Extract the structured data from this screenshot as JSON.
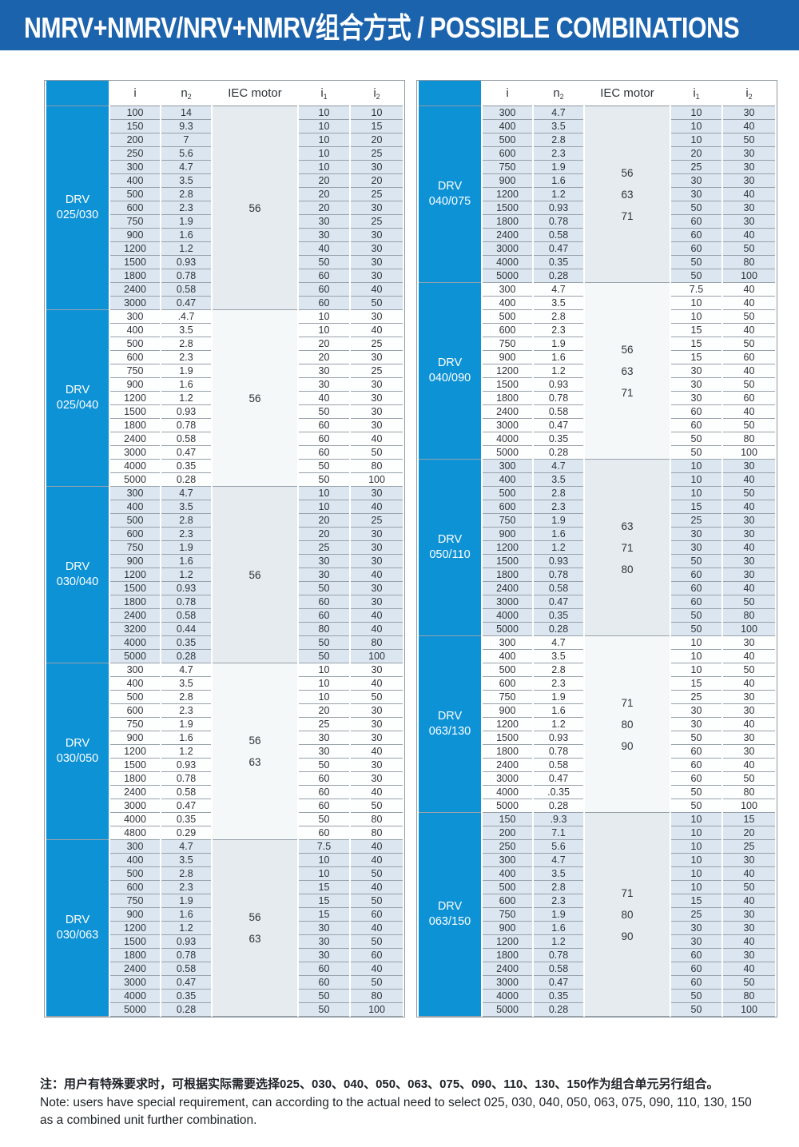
{
  "banner": {
    "title": "NMRV+NMRV/NRV+NMRV组合方式 / POSSIBLE COMBINATIONS",
    "bg_color": "#1c63ae"
  },
  "colors": {
    "group_label_blue": "#0d92d6",
    "shaded_cell": "#dbe6f0",
    "grid_line": "#98a2aa"
  },
  "table_headers": [
    {
      "main": "i",
      "sub": ""
    },
    {
      "main": "n",
      "sub": "2"
    },
    {
      "main": "IEC motor",
      "sub": ""
    },
    {
      "main": "i",
      "sub": "1"
    },
    {
      "main": "i",
      "sub": "2"
    }
  ],
  "tables": [
    {
      "side": "left",
      "groups": [
        {
          "label_line1": "DRV",
          "label_line2": "025/030",
          "shading": "shaded",
          "iec": [
            "56"
          ],
          "rows": [
            [
              "100",
              "14",
              "10",
              "10"
            ],
            [
              "150",
              "9.3",
              "10",
              "15"
            ],
            [
              "200",
              "7",
              "10",
              "20"
            ],
            [
              "250",
              "5.6",
              "10",
              "25"
            ],
            [
              "300",
              "4.7",
              "10",
              "30"
            ],
            [
              "400",
              "3.5",
              "20",
              "20"
            ],
            [
              "500",
              "2.8",
              "20",
              "25"
            ],
            [
              "600",
              "2.3",
              "20",
              "30"
            ],
            [
              "750",
              "1.9",
              "30",
              "25"
            ],
            [
              "900",
              "1.6",
              "30",
              "30"
            ],
            [
              "1200",
              "1.2",
              "40",
              "30"
            ],
            [
              "1500",
              "0.93",
              "50",
              "30"
            ],
            [
              "1800",
              "0.78",
              "60",
              "30"
            ],
            [
              "2400",
              "0.58",
              "60",
              "40"
            ],
            [
              "3000",
              "0.47",
              "60",
              "50"
            ]
          ]
        },
        {
          "label_line1": "DRV",
          "label_line2": "025/040",
          "shading": "white",
          "iec": [
            "56"
          ],
          "rows": [
            [
              "300",
              ".4.7",
              "10",
              "30"
            ],
            [
              "400",
              "3.5",
              "10",
              "40"
            ],
            [
              "500",
              "2.8",
              "20",
              "25"
            ],
            [
              "600",
              "2.3",
              "20",
              "30"
            ],
            [
              "750",
              "1.9",
              "30",
              "25"
            ],
            [
              "900",
              "1.6",
              "30",
              "30"
            ],
            [
              "1200",
              "1.2",
              "40",
              "30"
            ],
            [
              "1500",
              "0.93",
              "50",
              "30"
            ],
            [
              "1800",
              "0.78",
              "60",
              "30"
            ],
            [
              "2400",
              "0.58",
              "60",
              "40"
            ],
            [
              "3000",
              "0.47",
              "60",
              "50"
            ],
            [
              "4000",
              "0.35",
              "50",
              "80"
            ],
            [
              "5000",
              "0.28",
              "50",
              "100"
            ]
          ]
        },
        {
          "label_line1": "DRV",
          "label_line2": "030/040",
          "shading": "shaded",
          "iec": [
            "56"
          ],
          "rows": [
            [
              "300",
              "4.7",
              "10",
              "30"
            ],
            [
              "400",
              "3.5",
              "10",
              "40"
            ],
            [
              "500",
              "2.8",
              "20",
              "25"
            ],
            [
              "600",
              "2.3",
              "20",
              "30"
            ],
            [
              "750",
              "1.9",
              "25",
              "30"
            ],
            [
              "900",
              "1.6",
              "30",
              "30"
            ],
            [
              "1200",
              "1.2",
              "30",
              "40"
            ],
            [
              "1500",
              "0.93",
              "50",
              "30"
            ],
            [
              "1800",
              "0.78",
              "60",
              "30"
            ],
            [
              "2400",
              "0.58",
              "60",
              "40"
            ],
            [
              "3200",
              "0.44",
              "80",
              "40"
            ],
            [
              "4000",
              "0.35",
              "50",
              "80"
            ],
            [
              "5000",
              "0.28",
              "50",
              "100"
            ]
          ]
        },
        {
          "label_line1": "DRV",
          "label_line2": "030/050",
          "shading": "white",
          "iec": [
            "56",
            "63"
          ],
          "rows": [
            [
              "300",
              "4.7",
              "10",
              "30"
            ],
            [
              "400",
              "3.5",
              "10",
              "40"
            ],
            [
              "500",
              "2.8",
              "10",
              "50"
            ],
            [
              "600",
              "2.3",
              "20",
              "30"
            ],
            [
              "750",
              "1.9",
              "25",
              "30"
            ],
            [
              "900",
              "1.6",
              "30",
              "30"
            ],
            [
              "1200",
              "1.2",
              "30",
              "40"
            ],
            [
              "1500",
              "0.93",
              "50",
              "30"
            ],
            [
              "1800",
              "0.78",
              "60",
              "30"
            ],
            [
              "2400",
              "0.58",
              "60",
              "40"
            ],
            [
              "3000",
              "0.47",
              "60",
              "50"
            ],
            [
              "4000",
              "0.35",
              "50",
              "80"
            ],
            [
              "4800",
              "0.29",
              "60",
              "80"
            ]
          ]
        },
        {
          "label_line1": "DRV",
          "label_line2": "030/063",
          "shading": "shaded",
          "iec": [
            "56",
            "63"
          ],
          "rows": [
            [
              "300",
              "4.7",
              "7.5",
              "40"
            ],
            [
              "400",
              "3.5",
              "10",
              "40"
            ],
            [
              "500",
              "2.8",
              "10",
              "50"
            ],
            [
              "600",
              "2.3",
              "15",
              "40"
            ],
            [
              "750",
              "1.9",
              "15",
              "50"
            ],
            [
              "900",
              "1.6",
              "15",
              "60"
            ],
            [
              "1200",
              "1.2",
              "30",
              "40"
            ],
            [
              "1500",
              "0.93",
              "30",
              "50"
            ],
            [
              "1800",
              "0.78",
              "30",
              "60"
            ],
            [
              "2400",
              "0.58",
              "60",
              "40"
            ],
            [
              "3000",
              "0.47",
              "60",
              "50"
            ],
            [
              "4000",
              "0.35",
              "50",
              "80"
            ],
            [
              "5000",
              "0.28",
              "50",
              "100"
            ]
          ]
        }
      ]
    },
    {
      "side": "right",
      "groups": [
        {
          "label_line1": "DRV",
          "label_line2": "040/075",
          "shading": "shaded",
          "iec": [
            "56",
            "63",
            "71"
          ],
          "rows": [
            [
              "300",
              "4.7",
              "10",
              "30"
            ],
            [
              "400",
              "3.5",
              "10",
              "40"
            ],
            [
              "500",
              "2.8",
              "10",
              "50"
            ],
            [
              "600",
              "2.3",
              "20",
              "30"
            ],
            [
              "750",
              "1.9",
              "25",
              "30"
            ],
            [
              "900",
              "1.6",
              "30",
              "30"
            ],
            [
              "1200",
              "1.2",
              "30",
              "40"
            ],
            [
              "1500",
              "0.93",
              "50",
              "30"
            ],
            [
              "1800",
              "0.78",
              "60",
              "30"
            ],
            [
              "2400",
              "0.58",
              "60",
              "40"
            ],
            [
              "3000",
              "0.47",
              "60",
              "50"
            ],
            [
              "4000",
              "0.35",
              "50",
              "80"
            ],
            [
              "5000",
              "0.28",
              "50",
              "100"
            ]
          ]
        },
        {
          "label_line1": "DRV",
          "label_line2": "040/090",
          "shading": "white",
          "iec": [
            "56",
            "63",
            "71"
          ],
          "rows": [
            [
              "300",
              "4.7",
              "7.5",
              "40"
            ],
            [
              "400",
              "3.5",
              "10",
              "40"
            ],
            [
              "500",
              "2.8",
              "10",
              "50"
            ],
            [
              "600",
              "2.3",
              "15",
              "40"
            ],
            [
              "750",
              "1.9",
              "15",
              "50"
            ],
            [
              "900",
              "1.6",
              "15",
              "60"
            ],
            [
              "1200",
              "1.2",
              "30",
              "40"
            ],
            [
              "1500",
              "0.93",
              "30",
              "50"
            ],
            [
              "1800",
              "0.78",
              "30",
              "60"
            ],
            [
              "2400",
              "0.58",
              "60",
              "40"
            ],
            [
              "3000",
              "0.47",
              "60",
              "50"
            ],
            [
              "4000",
              "0.35",
              "50",
              "80"
            ],
            [
              "5000",
              "0.28",
              "50",
              "100"
            ]
          ]
        },
        {
          "label_line1": "DRV",
          "label_line2": "050/110",
          "shading": "shaded",
          "iec": [
            "63",
            "71",
            "80"
          ],
          "rows": [
            [
              "300",
              "4.7",
              "10",
              "30"
            ],
            [
              "400",
              "3.5",
              "10",
              "40"
            ],
            [
              "500",
              "2.8",
              "10",
              "50"
            ],
            [
              "600",
              "2.3",
              "15",
              "40"
            ],
            [
              "750",
              "1.9",
              "25",
              "30"
            ],
            [
              "900",
              "1.6",
              "30",
              "30"
            ],
            [
              "1200",
              "1.2",
              "30",
              "40"
            ],
            [
              "1500",
              "0.93",
              "50",
              "30"
            ],
            [
              "1800",
              "0.78",
              "60",
              "30"
            ],
            [
              "2400",
              "0.58",
              "60",
              "40"
            ],
            [
              "3000",
              "0.47",
              "60",
              "50"
            ],
            [
              "4000",
              "0.35",
              "50",
              "80"
            ],
            [
              "5000",
              "0.28",
              "50",
              "100"
            ]
          ]
        },
        {
          "label_line1": "DRV",
          "label_line2": "063/130",
          "shading": "white",
          "iec": [
            "71",
            "80",
            "90"
          ],
          "rows": [
            [
              "300",
              "4.7",
              "10",
              "30"
            ],
            [
              "400",
              "3.5",
              "10",
              "40"
            ],
            [
              "500",
              "2.8",
              "10",
              "50"
            ],
            [
              "600",
              "2.3",
              "15",
              "40"
            ],
            [
              "750",
              "1.9",
              "25",
              "30"
            ],
            [
              "900",
              "1.6",
              "30",
              "30"
            ],
            [
              "1200",
              "1.2",
              "30",
              "40"
            ],
            [
              "1500",
              "0.93",
              "50",
              "30"
            ],
            [
              "1800",
              "0.78",
              "60",
              "30"
            ],
            [
              "2400",
              "0.58",
              "60",
              "40"
            ],
            [
              "3000",
              "0.47",
              "60",
              "50"
            ],
            [
              "4000",
              ".0.35",
              "50",
              "80"
            ],
            [
              "5000",
              "0.28",
              "50",
              "100"
            ]
          ]
        },
        {
          "label_line1": "DRV",
          "label_line2": "063/150",
          "shading": "shaded",
          "iec": [
            "71",
            "80",
            "90"
          ],
          "rows": [
            [
              "150",
              ".9.3",
              "10",
              "15"
            ],
            [
              "200",
              "7.1",
              "10",
              "20"
            ],
            [
              "250",
              "5.6",
              "10",
              "25"
            ],
            [
              "300",
              "4.7",
              "10",
              "30"
            ],
            [
              "400",
              "3.5",
              "10",
              "40"
            ],
            [
              "500",
              "2.8",
              "10",
              "50"
            ],
            [
              "600",
              "2.3",
              "15",
              "40"
            ],
            [
              "750",
              "1.9",
              "25",
              "30"
            ],
            [
              "900",
              "1.6",
              "30",
              "30"
            ],
            [
              "1200",
              "1.2",
              "30",
              "40"
            ],
            [
              "1800",
              "0.78",
              "60",
              "30"
            ],
            [
              "2400",
              "0.58",
              "60",
              "40"
            ],
            [
              "3000",
              "0.47",
              "60",
              "50"
            ],
            [
              "4000",
              "0.35",
              "50",
              "80"
            ],
            [
              "5000",
              "0.28",
              "50",
              "100"
            ]
          ]
        }
      ]
    }
  ],
  "notes": {
    "zh": "注：用户有特殊要求时，可根据实际需要选择025、030、040、050、063、075、090、110、130、150作为组合单元另行组合。",
    "en": "Note: users have special requirement, can according to the actual need to select 025, 030, 040, 050, 063, 075, 090, 110, 130, 150 as a combined unit further combination."
  }
}
